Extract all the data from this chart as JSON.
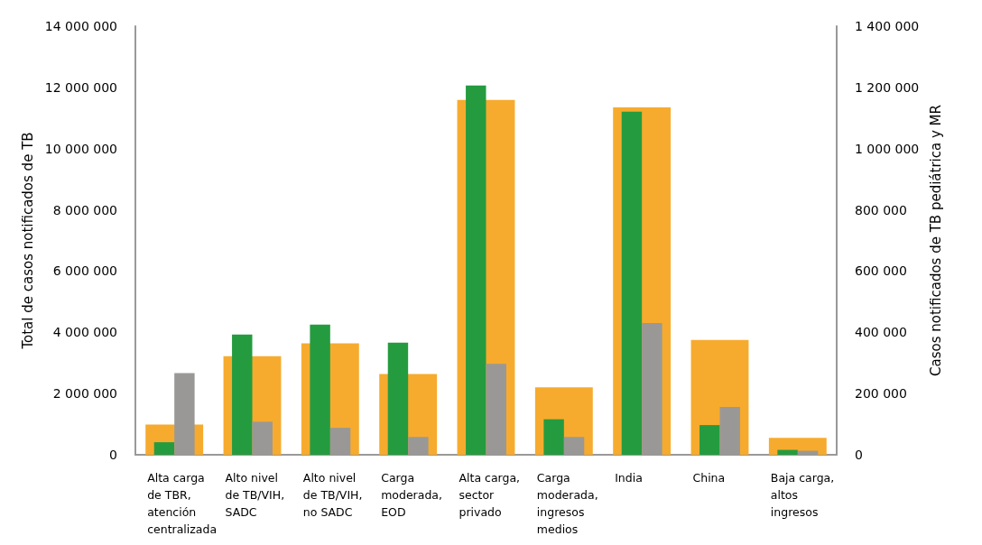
{
  "chart_data": {
    "type": "bar",
    "ylabel": "Total de casos notificados de TB",
    "y2label": "Casos notificados de TB pediátrica y MR",
    "categories": [
      "Alta carga de TBR, atención centralizada",
      "Alto nivel de TB/VIH, SADC",
      "Alto nivel de TB/VIH, no SADC",
      "Carga moderada, EOD",
      "Alta carga, sector privado",
      "Carga moderada, ingresos medios",
      "India",
      "China",
      "Baja carga, altos ingresos"
    ],
    "series": [
      {
        "color": "#f6ab2e",
        "values": [
          990000,
          3220000,
          3640000,
          2640000,
          11590000,
          2200000,
          11350000,
          3750000,
          550000
        ]
      },
      {
        "color": "#259b3f",
        "axis": "y2",
        "values": [
          41000,
          393000,
          425000,
          366000,
          1206000,
          116000,
          1121000,
          97000,
          16000
        ]
      },
      {
        "color": "#999896",
        "axis": "y2",
        "values": [
          267000,
          108000,
          88000,
          58000,
          297000,
          58000,
          430000,
          156000,
          13000
        ]
      }
    ],
    "ylim": [
      0,
      14000000
    ],
    "yticks": [
      0,
      2000000,
      4000000,
      6000000,
      8000000,
      10000000,
      12000000,
      14000000
    ],
    "y2lim": [
      0,
      1400000
    ],
    "y2ticks": [
      0,
      200000,
      400000,
      600000,
      800000,
      1000000,
      1200000,
      1400000
    ],
    "grid": false
  }
}
